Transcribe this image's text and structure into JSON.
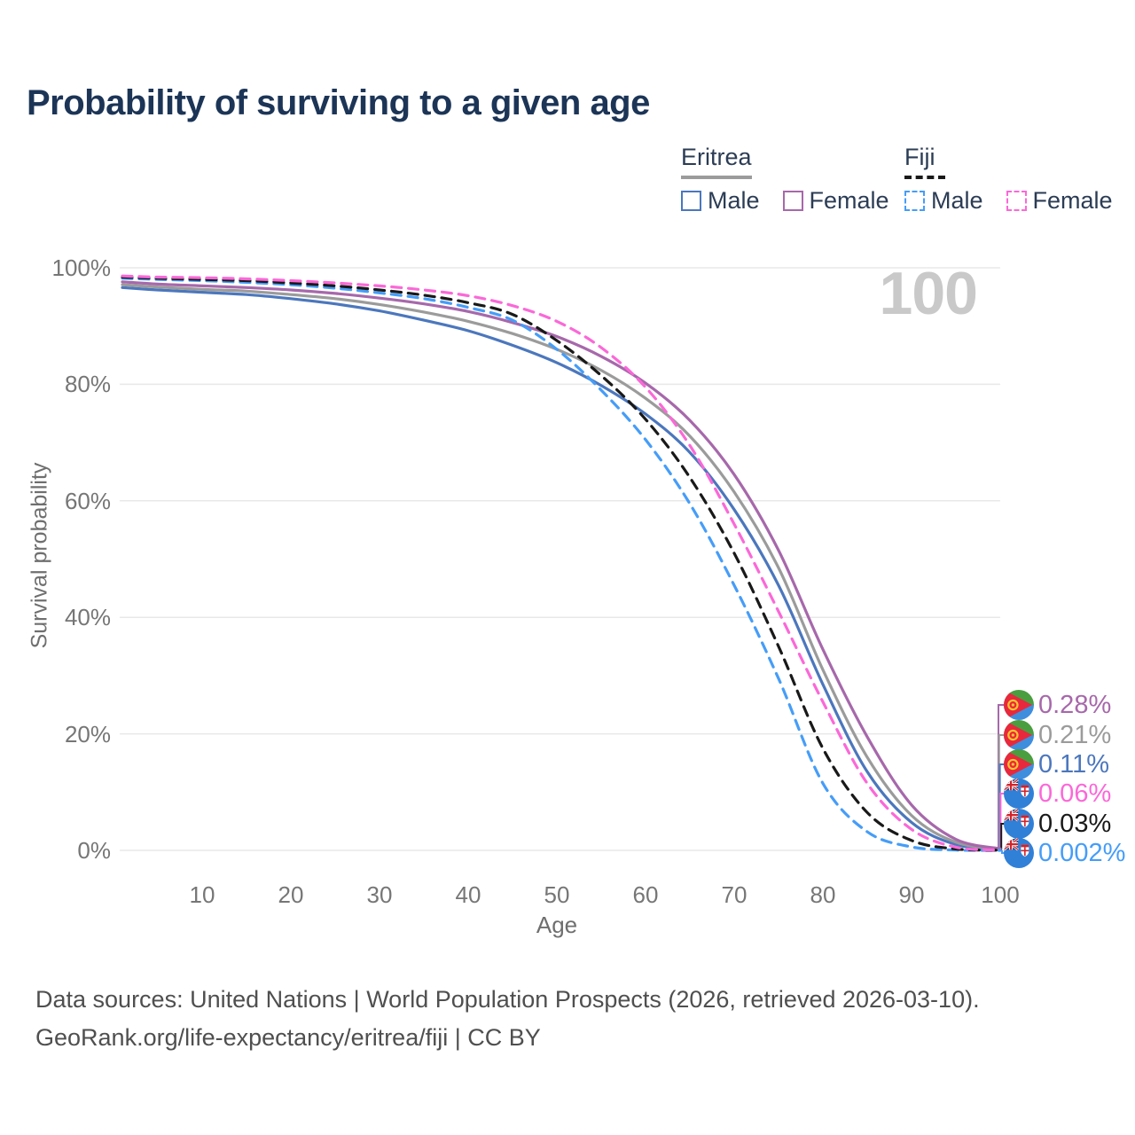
{
  "title": "Probability of surviving to a given age",
  "watermark": "100",
  "legend": {
    "groups": [
      {
        "name": "Eritrea",
        "underline_style": "solid",
        "underline_color": "#9b9b9b",
        "items": [
          {
            "label": "Male",
            "color": "#4b77bd",
            "dashed": false
          },
          {
            "label": "Female",
            "color": "#a768ab",
            "dashed": false
          }
        ]
      },
      {
        "name": "Fiji",
        "underline_style": "dashed",
        "underline_color": "#191919",
        "items": [
          {
            "label": "Male",
            "color": "#459df8",
            "dashed": true
          },
          {
            "label": "Female",
            "color": "#fb68d8",
            "dashed": true
          }
        ]
      }
    ]
  },
  "y_axis": {
    "label": "Survival probability",
    "ticks": [
      {
        "value": 100,
        "label": "100%"
      },
      {
        "value": 80,
        "label": "80%"
      },
      {
        "value": 60,
        "label": "60%"
      },
      {
        "value": 40,
        "label": "40%"
      },
      {
        "value": 20,
        "label": "20%"
      },
      {
        "value": 0,
        "label": "0%"
      }
    ]
  },
  "x_axis": {
    "label": "Age",
    "ticks": [
      {
        "value": 10,
        "label": "10"
      },
      {
        "value": 20,
        "label": "20"
      },
      {
        "value": 30,
        "label": "30"
      },
      {
        "value": 40,
        "label": "40"
      },
      {
        "value": 50,
        "label": "50"
      },
      {
        "value": 60,
        "label": "60"
      },
      {
        "value": 70,
        "label": "70"
      },
      {
        "value": 80,
        "label": "80"
      },
      {
        "value": 90,
        "label": "90"
      },
      {
        "value": 100,
        "label": "100"
      }
    ]
  },
  "chart_data": {
    "type": "line",
    "title": "Probability of surviving to a given age",
    "xlabel": "Age",
    "ylabel": "Survival probability",
    "xlim": [
      0,
      100
    ],
    "ylim": [
      0,
      100
    ],
    "grid": true,
    "legend_position": "top-right",
    "x": [
      1,
      5,
      10,
      15,
      20,
      25,
      30,
      35,
      40,
      45,
      50,
      55,
      60,
      65,
      70,
      75,
      80,
      85,
      90,
      95,
      100
    ],
    "series": [
      {
        "name": "Eritrea Male",
        "country": "eritrea",
        "sex": "male",
        "color": "#4b77bd",
        "dashed": false,
        "end_label": "0.11%",
        "values": [
          96.6,
          96.2,
          95.8,
          95.4,
          94.7,
          93.8,
          92.6,
          91.0,
          89.2,
          86.7,
          83.7,
          79.8,
          74.9,
          68.3,
          58.5,
          45.5,
          28.5,
          13.5,
          4.8,
          1.0,
          0.11
        ]
      },
      {
        "name": "Eritrea",
        "country": "eritrea",
        "sex": "both",
        "color": "#9b9b9b",
        "dashed": false,
        "end_label": "0.21%",
        "values": [
          97.1,
          96.7,
          96.3,
          96.0,
          95.4,
          94.7,
          93.7,
          92.4,
          90.8,
          88.7,
          86.0,
          82.4,
          77.6,
          71.1,
          61.5,
          48.5,
          31.0,
          16.0,
          6.0,
          1.4,
          0.21
        ]
      },
      {
        "name": "Eritrea Female",
        "country": "eritrea",
        "sex": "female",
        "color": "#a768ab",
        "dashed": false,
        "end_label": "0.28%",
        "values": [
          97.6,
          97.2,
          96.9,
          96.6,
          96.2,
          95.6,
          94.8,
          93.8,
          92.5,
          90.6,
          88.2,
          84.8,
          80.2,
          73.8,
          64.5,
          51.5,
          34.5,
          19.5,
          7.8,
          1.9,
          0.28
        ]
      },
      {
        "name": "Fiji Male",
        "country": "fiji",
        "sex": "male",
        "color": "#459df8",
        "dashed": true,
        "end_label": "0.002%",
        "values": [
          98.2,
          98.0,
          97.8,
          97.5,
          97.1,
          96.5,
          95.7,
          94.7,
          93.2,
          91.0,
          86.0,
          79.0,
          70.5,
          59.5,
          45.5,
          29.5,
          11.5,
          3.2,
          0.6,
          0.05,
          0.002
        ]
      },
      {
        "name": "Fiji",
        "country": "fiji",
        "sex": "both",
        "color": "#191919",
        "dashed": true,
        "end_label": "0.03%",
        "values": [
          98.4,
          98.2,
          98.0,
          97.8,
          97.4,
          96.9,
          96.2,
          95.3,
          94.0,
          92.0,
          87.5,
          81.5,
          74.0,
          64.0,
          51.0,
          35.0,
          17.5,
          6.5,
          1.7,
          0.25,
          0.03
        ]
      },
      {
        "name": "Fiji Female",
        "country": "fiji",
        "sex": "female",
        "color": "#fb68d8",
        "dashed": true,
        "end_label": "0.06%",
        "values": [
          98.6,
          98.4,
          98.3,
          98.1,
          97.8,
          97.4,
          96.9,
          96.2,
          95.2,
          93.5,
          90.8,
          86.3,
          79.5,
          69.5,
          56.0,
          41.0,
          25.5,
          11.5,
          3.6,
          0.55,
          0.06
        ]
      }
    ]
  },
  "footer": {
    "line1": "Data sources: United Nations | World Population Prospects (2026, retrieved 2026-03-10).",
    "line2": "GeoRank.org/life-expectancy/eritrea/fiji | CC BY"
  }
}
